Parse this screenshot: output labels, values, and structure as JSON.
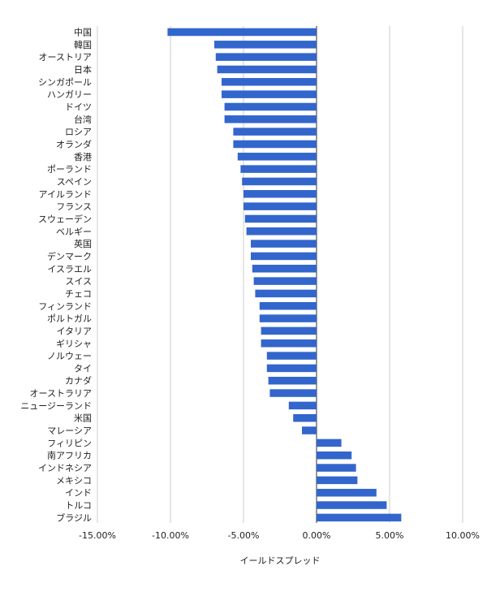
{
  "chart_data": {
    "type": "bar",
    "orientation": "horizontal",
    "xlabel": "イールドスプレッド",
    "ylabel": "",
    "xlim": [
      -15,
      10
    ],
    "ticks": [
      -15,
      -10,
      -5,
      0,
      5,
      10
    ],
    "tick_labels": [
      "-15.00%",
      "-10.00%",
      "-5.00%",
      "0.00%",
      "5.00%",
      "10.00%"
    ],
    "grid": true,
    "bar_color": "#3366cc",
    "categories": [
      "中国",
      "韓国",
      "オーストリア",
      "日本",
      "シンガポール",
      "ハンガリー",
      "ドイツ",
      "台湾",
      "ロシア",
      "オランダ",
      "香港",
      "ポーランド",
      "スペイン",
      "アイルランド",
      "フランス",
      "スウェーデン",
      "ベルギー",
      "英国",
      "デンマーク",
      "イスラエル",
      "スイス",
      "チェコ",
      "フィンランド",
      "ポルトガル",
      "イタリア",
      "ギリシャ",
      "ノルウェー",
      "タイ",
      "カナダ",
      "オーストラリア",
      "ニュージーランド",
      "米国",
      "マレーシア",
      "フィリピン",
      "南アフリカ",
      "インドネシア",
      "メキシコ",
      "インド",
      "トルコ",
      "ブラジル"
    ],
    "values": [
      -10.2,
      -7.0,
      -6.9,
      -6.8,
      -6.5,
      -6.5,
      -6.3,
      -6.3,
      -5.7,
      -5.7,
      -5.4,
      -5.2,
      -5.1,
      -5.0,
      -5.0,
      -4.9,
      -4.8,
      -4.5,
      -4.5,
      -4.4,
      -4.3,
      -4.2,
      -3.9,
      -3.9,
      -3.8,
      -3.8,
      -3.4,
      -3.4,
      -3.3,
      -3.2,
      -1.9,
      -1.6,
      -1.0,
      1.7,
      2.4,
      2.7,
      2.8,
      4.1,
      4.8,
      5.8
    ]
  }
}
